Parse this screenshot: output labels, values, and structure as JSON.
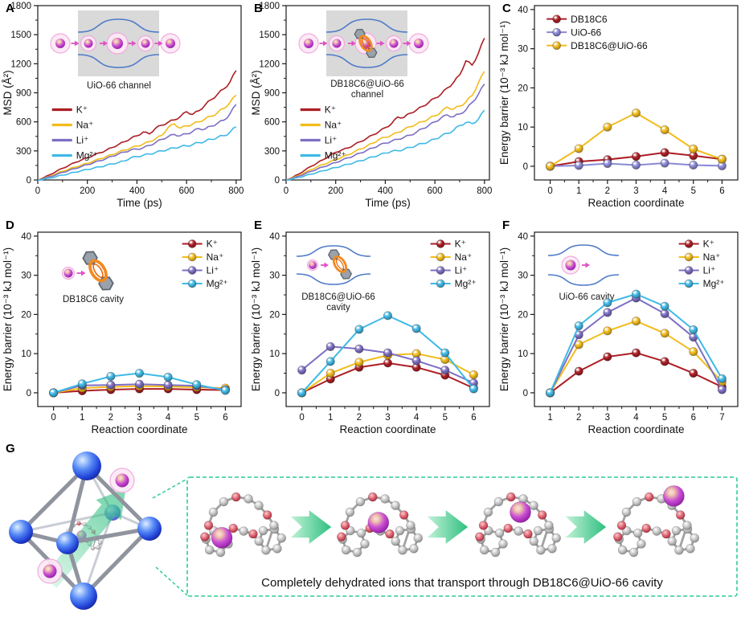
{
  "panel_g": {
    "label": "G",
    "caption": "Completely dehydrated ions that transport through DB18C6@UiO-66 cavity",
    "stages": 4,
    "accent_green": "#2ECC8F",
    "ion_color": "#B13BBF"
  },
  "chart_data": [
    {
      "panel": "A",
      "type": "line",
      "xlabel": "Time (ps)",
      "ylabel": "MSD (Å²)",
      "xlim": [
        0,
        820
      ],
      "ylim": [
        0,
        1800
      ],
      "xticks": [
        0,
        200,
        400,
        600,
        800
      ],
      "yticks": [
        0,
        300,
        600,
        900,
        1200,
        1500,
        1800
      ],
      "xminor": [
        100,
        300,
        500,
        700
      ],
      "yminor": [
        150,
        450,
        750,
        1050,
        1350,
        1650
      ],
      "x_step": 25,
      "legend_pos": [
        0.07,
        0.56
      ],
      "inset": {
        "kind": "channel",
        "label": [
          "UiO-66 channel"
        ]
      },
      "series": [
        {
          "name": "K⁺",
          "color": "#AC1E24",
          "values": [
            0,
            25,
            55,
            90,
            120,
            150,
            180,
            205,
            230,
            255,
            280,
            305,
            335,
            365,
            395,
            430,
            455,
            495,
            475,
            535,
            565,
            595,
            620,
            655,
            705,
            678,
            715,
            775,
            830,
            885,
            940,
            1010,
            1130
          ]
        },
        {
          "name": "Na⁺",
          "color": "#F2BC1B",
          "values": [
            0,
            18,
            40,
            65,
            90,
            112,
            132,
            152,
            172,
            195,
            218,
            240,
            262,
            288,
            308,
            330,
            350,
            370,
            395,
            425,
            460,
            540,
            580,
            535,
            558,
            578,
            600,
            632,
            658,
            695,
            738,
            800,
            875
          ]
        },
        {
          "name": "Li⁺",
          "color": "#7D6FC4",
          "values": [
            0,
            15,
            35,
            55,
            78,
            98,
            118,
            138,
            158,
            178,
            198,
            220,
            245,
            268,
            288,
            310,
            318,
            332,
            356,
            386,
            420,
            446,
            470,
            456,
            476,
            502,
            530,
            526,
            556,
            586,
            616,
            682,
            780
          ]
        },
        {
          "name": "Mg²⁺",
          "color": "#3FB9E6",
          "values": [
            0,
            8,
            20,
            35,
            50,
            65,
            80,
            95,
            108,
            122,
            135,
            150,
            165,
            180,
            196,
            230,
            240,
            255,
            268,
            284,
            300,
            315,
            330,
            344,
            352,
            366,
            386,
            400,
            420,
            440,
            456,
            492,
            550
          ]
        }
      ]
    },
    {
      "panel": "B",
      "type": "line",
      "xlabel": "Time (ps)",
      "ylabel": "MSD (Å²)",
      "xlim": [
        0,
        820
      ],
      "ylim": [
        0,
        1800
      ],
      "xticks": [
        0,
        200,
        400,
        600,
        800
      ],
      "yticks": [
        0,
        300,
        600,
        900,
        1200,
        1500,
        1800
      ],
      "xminor": [
        100,
        300,
        500,
        700
      ],
      "yminor": [
        150,
        450,
        750,
        1050,
        1350,
        1650
      ],
      "x_step": 25,
      "legend_pos": [
        0.07,
        0.56
      ],
      "inset": {
        "kind": "channel-crown",
        "label": [
          "DB18C6@UiO-66",
          "channel"
        ]
      },
      "series": [
        {
          "name": "K⁺",
          "color": "#AC1E24",
          "values": [
            0,
            25,
            60,
            100,
            140,
            175,
            210,
            250,
            285,
            310,
            330,
            365,
            395,
            430,
            465,
            500,
            540,
            580,
            650,
            645,
            690,
            720,
            760,
            800,
            845,
            885,
            950,
            1005,
            1085,
            1230,
            1185,
            1305,
            1465
          ]
        },
        {
          "name": "Na⁺",
          "color": "#F2BC1B",
          "values": [
            0,
            20,
            45,
            75,
            105,
            135,
            160,
            185,
            210,
            235,
            260,
            290,
            320,
            350,
            380,
            420,
            440,
            462,
            490,
            520,
            550,
            576,
            602,
            632,
            662,
            702,
            752,
            732,
            762,
            805,
            872,
            1000,
            1120
          ]
        },
        {
          "name": "Li⁺",
          "color": "#7D6FC4",
          "values": [
            0,
            15,
            38,
            62,
            88,
            112,
            135,
            158,
            180,
            205,
            228,
            252,
            278,
            305,
            330,
            360,
            380,
            400,
            420,
            440,
            462,
            492,
            530,
            562,
            600,
            640,
            672,
            652,
            682,
            722,
            800,
            882,
            990
          ]
        },
        {
          "name": "Mg²⁺",
          "color": "#3FB9E6",
          "values": [
            0,
            10,
            25,
            42,
            60,
            78,
            95,
            112,
            128,
            145,
            162,
            180,
            198,
            218,
            238,
            258,
            278,
            296,
            302,
            316,
            336,
            356,
            376,
            396,
            422,
            452,
            482,
            512,
            562,
            592,
            582,
            625,
            720
          ]
        }
      ]
    },
    {
      "panel": "C",
      "type": "marker",
      "xlabel": "Reaction coordinate",
      "ylabel": "Energy barrier (10⁻³ kJ mol⁻¹)",
      "xlim": [
        -0.55,
        6.55
      ],
      "ylim": [
        -3.5,
        41
      ],
      "xticks": [
        0,
        1,
        2,
        3,
        4,
        5,
        6
      ],
      "yticks": [
        0,
        10,
        20,
        30,
        40
      ],
      "xminor": [
        0.5,
        1.5,
        2.5,
        3.5,
        4.5,
        5.5
      ],
      "yminor": [
        5,
        15,
        25,
        35
      ],
      "x": [
        0,
        1,
        2,
        3,
        4,
        5,
        6
      ],
      "legend_pos": [
        0.06,
        0.04
      ],
      "inset": {
        "kind": "none",
        "label": []
      },
      "series": [
        {
          "name": "DB18C6",
          "color": "#AC1E24",
          "values": [
            0,
            1.2,
            1.7,
            2.5,
            3.5,
            2.7,
            1.8
          ]
        },
        {
          "name": "UiO-66",
          "color": "#8A8AD6",
          "values": [
            0,
            0.2,
            0.7,
            0.3,
            0.8,
            0.3,
            0.1
          ]
        },
        {
          "name": "DB18C6@UiO-66",
          "color": "#F2BC1B",
          "values": [
            0,
            4.5,
            10.0,
            13.6,
            9.3,
            4.4,
            1.8
          ]
        }
      ]
    },
    {
      "panel": "D",
      "type": "marker",
      "xlabel": "Reaction coordinate",
      "ylabel": "Energy barrier (10⁻³ kJ mol⁻¹)",
      "xlim": [
        -0.55,
        6.55
      ],
      "ylim": [
        -3.5,
        41
      ],
      "xticks": [
        0,
        1,
        2,
        3,
        4,
        5,
        6
      ],
      "yticks": [
        0,
        10,
        20,
        30,
        40
      ],
      "xminor": [
        0.5,
        1.5,
        2.5,
        3.5,
        4.5,
        5.5
      ],
      "yminor": [
        5,
        15,
        25,
        35
      ],
      "x": [
        0,
        1,
        2,
        3,
        4,
        5,
        6
      ],
      "legend_pos": [
        0.71,
        0.03
      ],
      "inset": {
        "kind": "crown-cavity",
        "label": [
          "DB18C6 cavity"
        ]
      },
      "series": [
        {
          "name": "K⁺",
          "color": "#AC1E24",
          "values": [
            0,
            0.5,
            0.8,
            1.0,
            1.0,
            0.8,
            0.7
          ]
        },
        {
          "name": "Na⁺",
          "color": "#F2BC1B",
          "values": [
            0,
            1.2,
            1.5,
            1.7,
            1.6,
            1.4,
            1.2
          ]
        },
        {
          "name": "Li⁺",
          "color": "#7D6FC4",
          "values": [
            0,
            1.9,
            2.0,
            2.2,
            2.0,
            1.8,
            0.8
          ]
        },
        {
          "name": "Mg²⁺",
          "color": "#3FB9E6",
          "values": [
            0,
            2.3,
            4.2,
            5.0,
            4.0,
            2.1,
            0.6
          ]
        }
      ]
    },
    {
      "panel": "E",
      "type": "marker",
      "xlabel": "Reaction coordinate",
      "ylabel": "Energy barrier (10⁻³ kJ mol⁻¹)",
      "xlim": [
        -0.55,
        6.55
      ],
      "ylim": [
        -3.5,
        41
      ],
      "xticks": [
        0,
        1,
        2,
        3,
        4,
        5,
        6
      ],
      "yticks": [
        0,
        10,
        20,
        30,
        40
      ],
      "xminor": [
        0.5,
        1.5,
        2.5,
        3.5,
        4.5,
        5.5
      ],
      "yminor": [
        5,
        15,
        25,
        35
      ],
      "x": [
        0,
        1,
        2,
        3,
        4,
        5,
        6
      ],
      "legend_pos": [
        0.71,
        0.03
      ],
      "inset": {
        "kind": "open-channel-crown",
        "label": [
          "DB18C6@UiO-66",
          "cavity"
        ]
      },
      "series": [
        {
          "name": "K⁺",
          "color": "#AC1E24",
          "values": [
            0,
            3.5,
            6.5,
            7.6,
            6.5,
            4.5,
            1.2
          ]
        },
        {
          "name": "Na⁺",
          "color": "#F2BC1B",
          "values": [
            0,
            5.0,
            7.8,
            9.6,
            10.0,
            8.5,
            4.6
          ]
        },
        {
          "name": "Li⁺",
          "color": "#7D6FC4",
          "values": [
            5.8,
            11.8,
            11.2,
            10.2,
            8.2,
            5.8,
            2.5
          ]
        },
        {
          "name": "Mg²⁺",
          "color": "#3FB9E6",
          "values": [
            0,
            8.0,
            16.2,
            19.7,
            16.4,
            10.2,
            1.0
          ]
        }
      ]
    },
    {
      "panel": "F",
      "type": "marker",
      "xlabel": "Reaction coordinate",
      "ylabel": "Energy barrier (10⁻³ kJ mol⁻¹)",
      "xlim": [
        0.45,
        7.55
      ],
      "ylim": [
        -3.5,
        41
      ],
      "xticks": [
        1,
        2,
        3,
        4,
        5,
        6,
        7
      ],
      "yticks": [
        0,
        10,
        20,
        30,
        40
      ],
      "xminor": [
        1.5,
        2.5,
        3.5,
        4.5,
        5.5,
        6.5
      ],
      "yminor": [
        5,
        15,
        25,
        35
      ],
      "x": [
        1,
        2,
        3,
        4,
        5,
        6,
        7
      ],
      "legend_pos": [
        0.71,
        0.03
      ],
      "inset": {
        "kind": "open-channel-ion",
        "label": [
          "UiO-66 cavity"
        ]
      },
      "series": [
        {
          "name": "K⁺",
          "color": "#AC1E24",
          "values": [
            0,
            5.5,
            9.2,
            10.2,
            8.0,
            5.0,
            1.5
          ]
        },
        {
          "name": "Na⁺",
          "color": "#F2BC1B",
          "values": [
            0,
            12.3,
            15.8,
            18.3,
            15.2,
            10.5,
            2.8
          ]
        },
        {
          "name": "Li⁺",
          "color": "#7D6FC4",
          "values": [
            0,
            14.8,
            20.5,
            24.2,
            20.2,
            14.2,
            0.8
          ]
        },
        {
          "name": "Mg²⁺",
          "color": "#3FB9E6",
          "values": [
            0,
            17.1,
            23.0,
            25.2,
            22.1,
            16.1,
            3.6
          ]
        }
      ]
    }
  ]
}
